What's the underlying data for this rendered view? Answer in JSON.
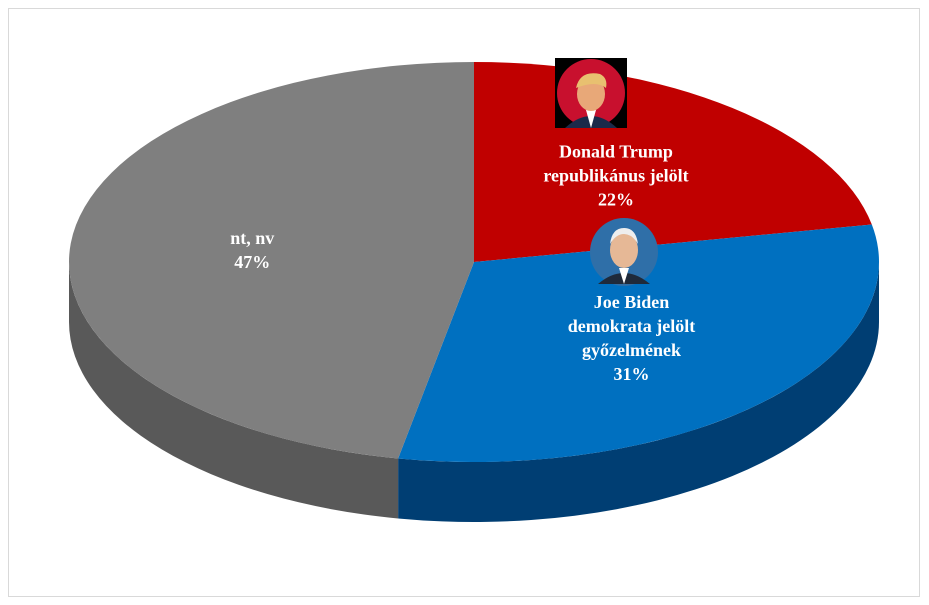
{
  "chart_data": {
    "type": "pie3d",
    "categories": [
      [
        "Donald Trump",
        "republikánus  jelölt"
      ],
      [
        "Joe Biden",
        "demokrata jelölt",
        "győzelmének"
      ],
      [
        "nt, nv"
      ]
    ],
    "values": [
      22,
      31,
      47
    ],
    "value_labels": [
      "22%",
      "31%",
      "47%"
    ],
    "colors": [
      "#c00000",
      "#0070c0",
      "#7f7f7f"
    ],
    "side_colors": [
      "#7a0000",
      "#003e73",
      "#595959"
    ]
  }
}
